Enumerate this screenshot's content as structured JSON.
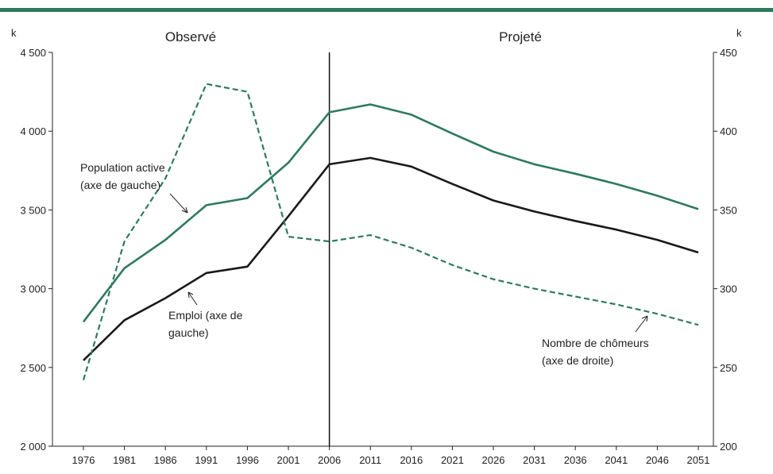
{
  "chart_data": {
    "type": "line",
    "x": [
      1976,
      1981,
      1986,
      1991,
      1996,
      2001,
      2006,
      2011,
      2016,
      2021,
      2026,
      2031,
      2036,
      2041,
      2046,
      2051
    ],
    "x_tick_labels": [
      "1976",
      "1981",
      "1986",
      "1991",
      "1996",
      "2001",
      "2006",
      "2011",
      "2016",
      "2021",
      "2026",
      "2031",
      "2036",
      "2041",
      "2046",
      "2051"
    ],
    "y_left": {
      "unit": "k",
      "ylim": [
        2000,
        4500
      ],
      "tick_values": [
        2000,
        2500,
        3000,
        3500,
        4000,
        4500
      ],
      "tick_labels": [
        "2 000",
        "2 500",
        "3 000",
        "3 500",
        "4 000",
        "4 500"
      ]
    },
    "y_right": {
      "unit": "k",
      "ylim": [
        200,
        450
      ],
      "tick_values": [
        200,
        250,
        300,
        350,
        400,
        450
      ],
      "tick_labels": [
        "200",
        "250",
        "300",
        "350",
        "400",
        "450"
      ]
    },
    "sections": {
      "observed": "Observé",
      "projected": "Projeté",
      "divider_year": 2006
    },
    "series": [
      {
        "key": "population_active",
        "axis": "left",
        "style": "solid",
        "color": "#2e7a5e",
        "values": [
          2790,
          3130,
          3310,
          3530,
          3575,
          3800,
          4120,
          4170,
          4105,
          3985,
          3870,
          3790,
          3730,
          3665,
          3590,
          3505
        ]
      },
      {
        "key": "emploi",
        "axis": "left",
        "style": "solid",
        "color": "#1a1a1a",
        "values": [
          2545,
          2800,
          2940,
          3100,
          3140,
          3460,
          3790,
          3830,
          3775,
          3665,
          3560,
          3490,
          3430,
          3375,
          3310,
          3230
        ]
      },
      {
        "key": "chomeurs",
        "axis": "right",
        "style": "dashed",
        "color": "#2e7a5e",
        "values": [
          242,
          330,
          370,
          430,
          425,
          333,
          330,
          334,
          326,
          315,
          306,
          300,
          295,
          290,
          284,
          277
        ]
      }
    ],
    "annotations": [
      {
        "series": "population_active",
        "lines": [
          "Population active",
          "(axe de gauche)"
        ]
      },
      {
        "series": "emploi",
        "lines": [
          "Emploi (axe de",
          "gauche)"
        ]
      },
      {
        "series": "chomeurs",
        "lines": [
          "Nombre de chômeurs",
          "(axe de droite)"
        ]
      }
    ],
    "header_bar_color": "#2e7a5e",
    "grid": false
  }
}
